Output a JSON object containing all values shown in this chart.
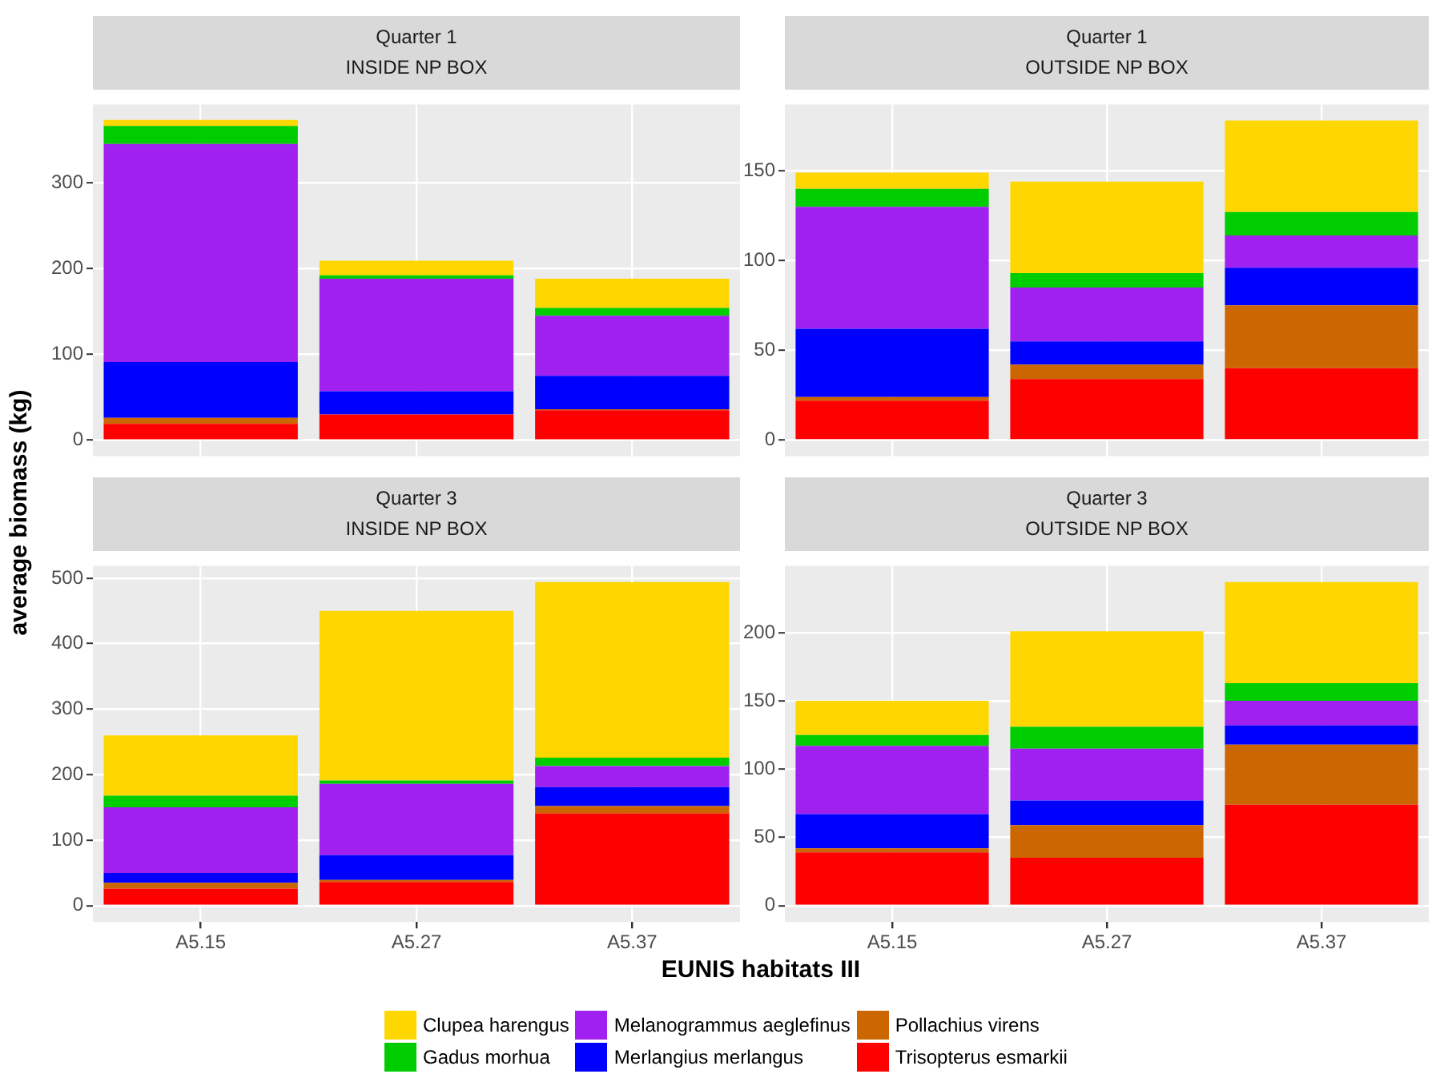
{
  "chart_data": [
    {
      "type": "bar",
      "title": "Quarter 1",
      "subtitle": "INSIDE NP BOX",
      "ylabel": "average biomass (kg)",
      "categories": [
        null,
        null,
        null
      ],
      "stacked": true,
      "ylim": [
        -18.6,
        391
      ],
      "yticks": [
        0,
        100,
        200,
        300
      ],
      "grid": true,
      "tick_labels": "y",
      "legend": "bottom",
      "series": [
        {
          "name": "Trisopterus esmarkii",
          "color": "#ff0000",
          "values": [
            19,
            30,
            35
          ]
        },
        {
          "name": "Pollachius virens",
          "color": "#cc6600",
          "values": [
            7,
            0,
            1
          ]
        },
        {
          "name": "Merlangius merlangus",
          "color": "#0000ff",
          "values": [
            65,
            27,
            39
          ]
        },
        {
          "name": "Melanogrammus aeglefinus",
          "color": "#a020f0",
          "values": [
            254,
            131,
            70
          ]
        },
        {
          "name": "Gadus morhua",
          "color": "#00cd00",
          "values": [
            21,
            4,
            9
          ]
        },
        {
          "name": "Clupea harengus",
          "color": "#ffd700",
          "values": [
            7,
            17,
            34
          ]
        }
      ]
    },
    {
      "type": "bar",
      "title": "Quarter 1",
      "subtitle": "OUTSIDE NP BOX",
      "categories": [
        null,
        null,
        null
      ],
      "stacked": true,
      "ylim": [
        -9,
        187
      ],
      "yticks": [
        0,
        50,
        100,
        150
      ],
      "grid": true,
      "tick_labels": "y",
      "series": [
        {
          "color": "#ff0000",
          "values": [
            22,
            34,
            40
          ]
        },
        {
          "color": "#cc6600",
          "values": [
            2,
            8,
            35
          ]
        },
        {
          "color": "#0000ff",
          "values": [
            38,
            13,
            21
          ]
        },
        {
          "color": "#a020f0",
          "values": [
            68,
            30,
            18
          ]
        },
        {
          "color": "#00cd00",
          "values": [
            10,
            8,
            13
          ]
        },
        {
          "color": "#ffd700",
          "values": [
            9,
            51,
            51
          ]
        }
      ]
    },
    {
      "type": "bar",
      "title": "Quarter 3",
      "subtitle": "INSIDE NP BOX",
      "xlabel": "EUNIS habitats III",
      "categories": [
        "A5.15",
        "A5.27",
        "A5.37"
      ],
      "stacked": true,
      "ylim": [
        -25,
        519
      ],
      "yticks": [
        0,
        100,
        200,
        300,
        400,
        500
      ],
      "grid": true,
      "series": [
        {
          "color": "#ff0000",
          "values": [
            26,
            36,
            141
          ]
        },
        {
          "color": "#cc6600",
          "values": [
            9,
            3,
            11
          ]
        },
        {
          "color": "#0000ff",
          "values": [
            15,
            38,
            29
          ]
        },
        {
          "color": "#a020f0",
          "values": [
            100,
            109,
            32
          ]
        },
        {
          "color": "#00cd00",
          "values": [
            18,
            5,
            13
          ]
        },
        {
          "color": "#ffd700",
          "values": [
            92,
            259,
            268
          ]
        }
      ]
    },
    {
      "type": "bar",
      "title": "Quarter 3",
      "subtitle": "OUTSIDE NP BOX",
      "categories": [
        "A5.15",
        "A5.27",
        "A5.37"
      ],
      "stacked": true,
      "ylim": [
        -12,
        249
      ],
      "yticks": [
        0,
        50,
        100,
        150,
        200
      ],
      "grid": true,
      "series": [
        {
          "color": "#ff0000",
          "values": [
            39,
            35,
            74
          ]
        },
        {
          "color": "#cc6600",
          "values": [
            3,
            24,
            44
          ]
        },
        {
          "color": "#0000ff",
          "values": [
            25,
            18,
            14
          ]
        },
        {
          "color": "#a020f0",
          "values": [
            50,
            38,
            18
          ]
        },
        {
          "color": "#00cd00",
          "values": [
            8,
            16,
            13
          ]
        },
        {
          "color": "#ffd700",
          "values": [
            25,
            70,
            74
          ]
        }
      ]
    }
  ]
}
